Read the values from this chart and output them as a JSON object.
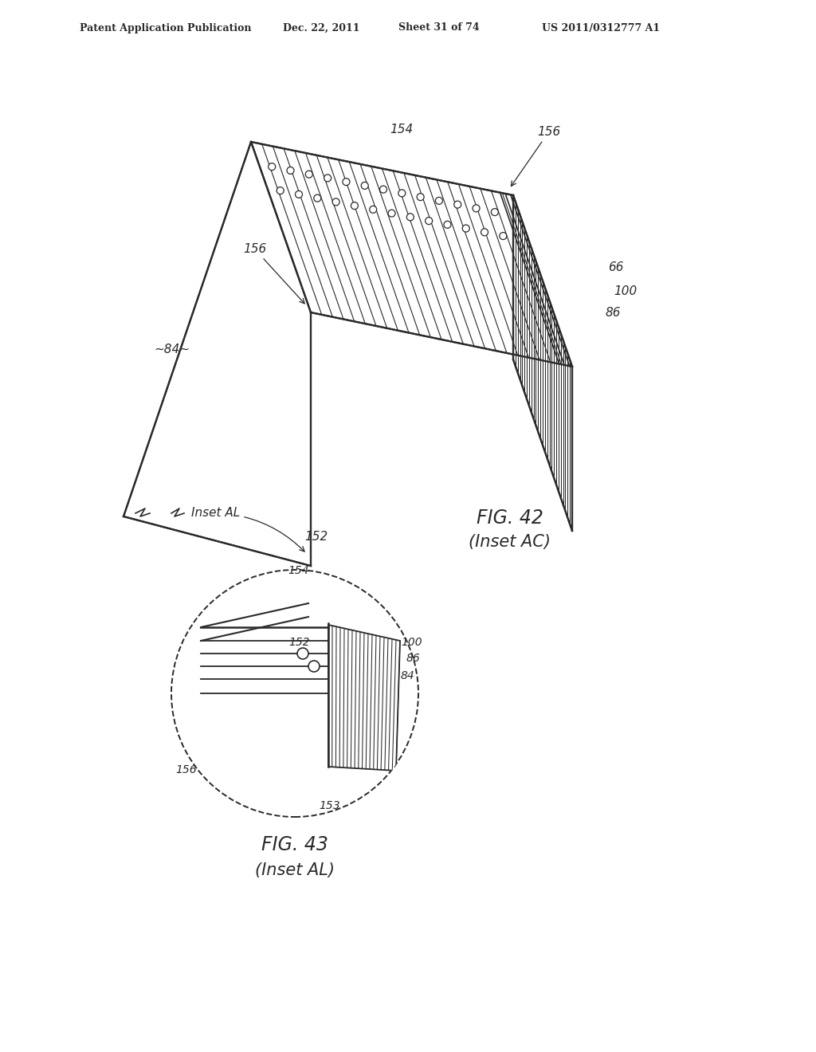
{
  "bg_color": "#ffffff",
  "header_text": "Patent Application Publication",
  "header_date": "Dec. 22, 2011",
  "header_sheet": "Sheet 31 of 74",
  "header_patent": "US 2011/0312777 A1",
  "fig42_caption": "FIG. 42",
  "fig42_subcaption": "(Inset AC)",
  "fig43_caption": "FIG. 43",
  "fig43_subcaption": "(Inset AL)",
  "line_color": "#2a2a2a",
  "label_fontsize": 11,
  "caption_fontsize": 17
}
